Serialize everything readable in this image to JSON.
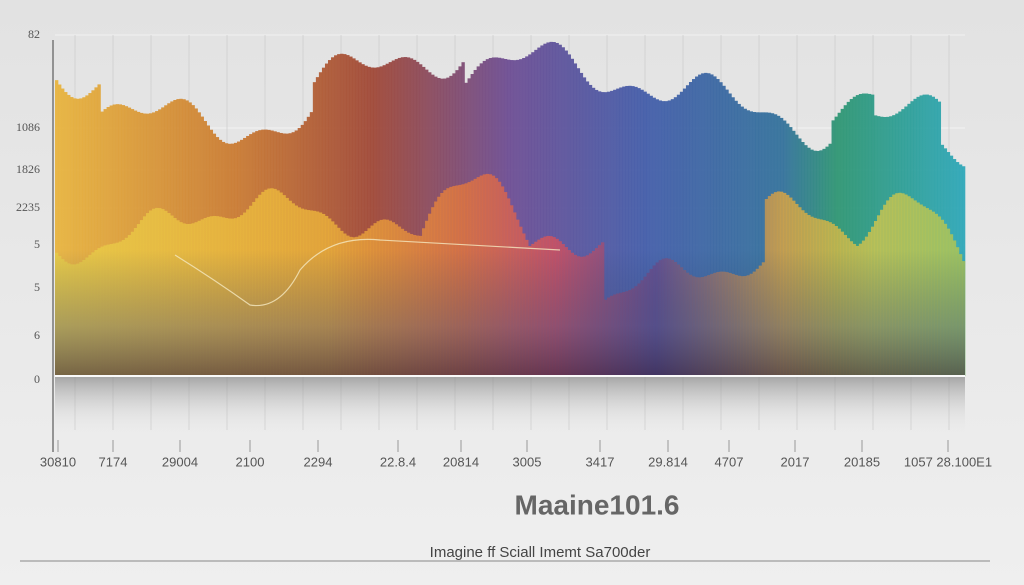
{
  "title": "Maaine101.6",
  "subtitle": "Imagine ff Sciall Imemt Sa700der",
  "y_axis_labels": [
    "82",
    "1086",
    "1826",
    "2235",
    "5",
    "5",
    "6",
    "0"
  ],
  "x_axis_labels": [
    "30810",
    "7174",
    "29004",
    "2100",
    "2294",
    "22.8.4",
    "20814",
    "3005",
    "3417",
    "29.814",
    "4707",
    "2017",
    "20185",
    "1057 28.100E1"
  ]
}
